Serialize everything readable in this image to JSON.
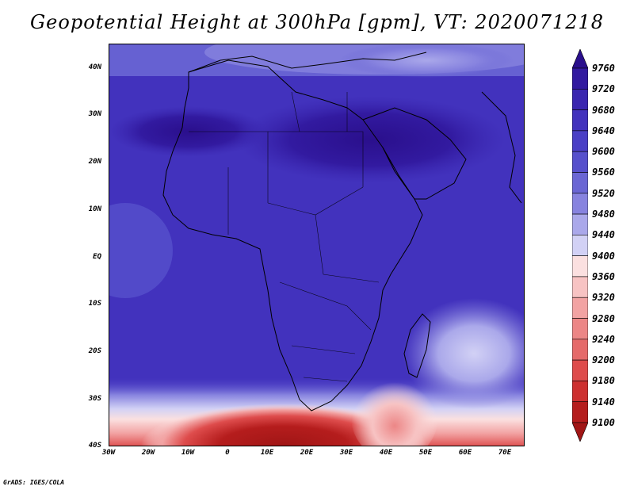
{
  "title": "Geopotential Height at 300hPa [gpm], VT: 2020071218",
  "credit": "GrADS: IGES/COLA",
  "map": {
    "lat_labels": [
      "40N",
      "30N",
      "20N",
      "10N",
      "EQ",
      "10S",
      "20S",
      "30S",
      "40S"
    ],
    "lon_labels": [
      "30W",
      "20W",
      "10W",
      "0",
      "10E",
      "20E",
      "30E",
      "40E",
      "50E",
      "60E",
      "70E"
    ],
    "lat_range": [
      -40,
      44
    ],
    "lon_range": [
      -30,
      75
    ]
  },
  "colorbar": {
    "levels": [
      "9760",
      "9720",
      "9680",
      "9640",
      "9600",
      "9560",
      "9520",
      "9480",
      "9440",
      "9400",
      "9360",
      "9320",
      "9280",
      "9240",
      "9200",
      "9180",
      "9140",
      "9100"
    ],
    "colors": [
      "#2a0f8c",
      "#321aa0",
      "#3a26b0",
      "#4232bd",
      "#4a3fc6",
      "#5650cc",
      "#6a66d4",
      "#8783df",
      "#aaa8ea",
      "#d2d1f5",
      "#fbe0e0",
      "#f7c3c3",
      "#f2a3a3",
      "#ec8686",
      "#e56a6a",
      "#de4c4c",
      "#cd3030",
      "#b51d1d",
      "#a11616"
    ]
  }
}
